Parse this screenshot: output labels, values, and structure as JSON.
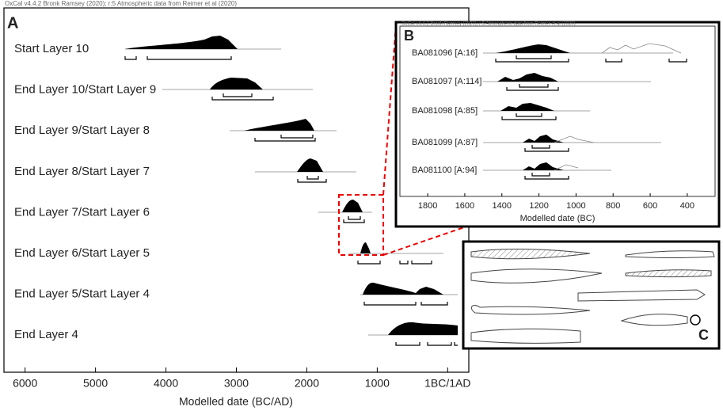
{
  "panel_a": {
    "header": "OxCal v4.4.2 Bronk Ramsey (2020); r:5 Atmospheric data from Reimer et al (2020)",
    "letter": "A",
    "rows": [
      "Start Layer 10",
      "End Layer 10/Start Layer 9",
      "End Layer 9/Start Layer 8",
      "End Layer 8/Start Layer 7",
      "End Layer 7/Start Layer 6",
      "End Layer 6/Start Layer 5",
      "End Layer 5/Start Layer 4",
      "End Layer 4"
    ],
    "xaxis": {
      "label": "Modelled date (BC/AD)",
      "xlim": [
        6300,
        -300
      ],
      "xticks": [
        6000,
        5000,
        4000,
        3000,
        2000,
        1000,
        {
          "value": 0,
          "label": "1BC/1AD"
        }
      ]
    }
  },
  "panel_b": {
    "header": "OxCal v4.4.2 Bronk Ramsey (2020); r:5 Atmospheric data from Reimer et al (2020)",
    "letter": "B",
    "rows": [
      "BA081096 [A:16]",
      "BA081097 [A:114]",
      "BA081098 [A:85]",
      "BA081099 [A:87]",
      "BA081100 [A:94]"
    ],
    "xaxis": {
      "label": "Modelled date (BC)",
      "xlim": [
        1950,
        250
      ],
      "xticks": [
        1800,
        1600,
        1400,
        1200,
        1000,
        800,
        600,
        400
      ]
    }
  },
  "panel_c": {
    "letter": "C"
  }
}
